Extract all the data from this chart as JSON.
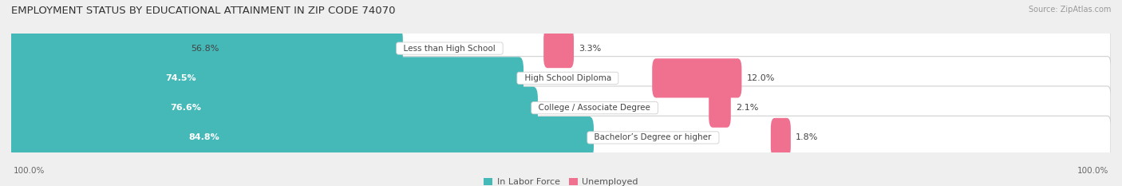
{
  "title": "EMPLOYMENT STATUS BY EDUCATIONAL ATTAINMENT IN ZIP CODE 74070",
  "source": "Source: ZipAtlas.com",
  "categories": [
    "Less than High School",
    "High School Diploma",
    "College / Associate Degree",
    "Bachelor’s Degree or higher"
  ],
  "labor_force": [
    56.8,
    74.5,
    76.6,
    84.8
  ],
  "unemployed": [
    3.3,
    12.0,
    2.1,
    1.8
  ],
  "labor_force_color": "#45b8b8",
  "unemployed_color": "#f07090",
  "background_color": "#efefef",
  "row_bg_color": "#ffffff",
  "row_edge_color": "#d0d0d0",
  "title_fontsize": 9.5,
  "label_fontsize": 8,
  "source_fontsize": 7,
  "tick_fontsize": 7.5,
  "legend_fontsize": 8,
  "left_label": "100.0%",
  "right_label": "100.0%",
  "total_width": 100.0
}
